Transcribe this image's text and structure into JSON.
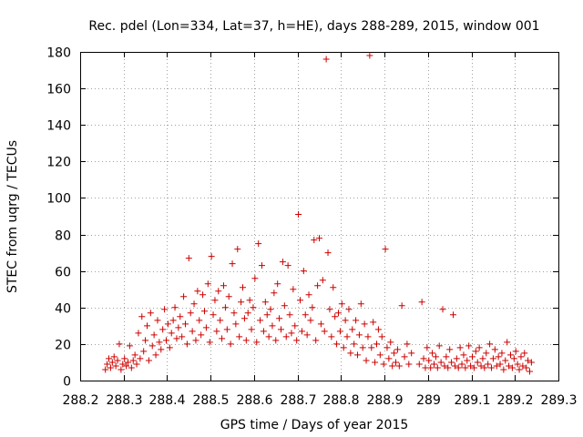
{
  "chart_data": {
    "type": "scatter",
    "title": "Rec. pdel (Lon=334, Lat=37, h=HE), days 288-289, 2015, window 001",
    "xlabel": "GPS time / Days of year 2015",
    "ylabel": "STEC from uqrg / TECUs",
    "xlim": [
      288.2,
      289.3
    ],
    "ylim": [
      0,
      180
    ],
    "xticks": [
      "288.2",
      "288.3",
      "288.4",
      "288.5",
      "288.6",
      "288.7",
      "288.8",
      "288.9",
      "289",
      "289.1",
      "289.2",
      "289.3"
    ],
    "yticks": [
      "0",
      "20",
      "40",
      "60",
      "80",
      "100",
      "120",
      "140",
      "160",
      "180"
    ],
    "grid": true,
    "marker": "+",
    "marker_color": "#cc0000",
    "points": [
      [
        288.258,
        6
      ],
      [
        288.262,
        9
      ],
      [
        288.266,
        12
      ],
      [
        288.27,
        7
      ],
      [
        288.274,
        10
      ],
      [
        288.278,
        13
      ],
      [
        288.282,
        8
      ],
      [
        288.286,
        11
      ],
      [
        288.29,
        20
      ],
      [
        288.294,
        6
      ],
      [
        288.298,
        9
      ],
      [
        288.302,
        12
      ],
      [
        288.306,
        8
      ],
      [
        288.31,
        10
      ],
      [
        288.314,
        19
      ],
      [
        288.318,
        7
      ],
      [
        288.322,
        11
      ],
      [
        288.326,
        14
      ],
      [
        288.33,
        9
      ],
      [
        288.334,
        26
      ],
      [
        288.338,
        12
      ],
      [
        288.342,
        35
      ],
      [
        288.346,
        16
      ],
      [
        288.35,
        22
      ],
      [
        288.354,
        30
      ],
      [
        288.358,
        11
      ],
      [
        288.362,
        37
      ],
      [
        288.366,
        19
      ],
      [
        288.37,
        25
      ],
      [
        288.374,
        14
      ],
      [
        288.378,
        33
      ],
      [
        288.382,
        21
      ],
      [
        288.386,
        17
      ],
      [
        288.39,
        28
      ],
      [
        288.394,
        39
      ],
      [
        288.398,
        22
      ],
      [
        288.402,
        31
      ],
      [
        288.406,
        18
      ],
      [
        288.41,
        26
      ],
      [
        288.414,
        33
      ],
      [
        288.418,
        40
      ],
      [
        288.422,
        23
      ],
      [
        288.426,
        29
      ],
      [
        288.43,
        35
      ],
      [
        288.434,
        24
      ],
      [
        288.438,
        46
      ],
      [
        288.442,
        31
      ],
      [
        288.446,
        20
      ],
      [
        288.45,
        67
      ],
      [
        288.454,
        37
      ],
      [
        288.458,
        27
      ],
      [
        288.462,
        42
      ],
      [
        288.466,
        22
      ],
      [
        288.47,
        49
      ],
      [
        288.474,
        33
      ],
      [
        288.478,
        25
      ],
      [
        288.482,
        47
      ],
      [
        288.486,
        38
      ],
      [
        288.49,
        29
      ],
      [
        288.494,
        53
      ],
      [
        288.498,
        21
      ],
      [
        288.502,
        68
      ],
      [
        288.506,
        36
      ],
      [
        288.51,
        44
      ],
      [
        288.514,
        27
      ],
      [
        288.518,
        49
      ],
      [
        288.522,
        33
      ],
      [
        288.526,
        23
      ],
      [
        288.53,
        52
      ],
      [
        288.534,
        40
      ],
      [
        288.538,
        28
      ],
      [
        288.542,
        46
      ],
      [
        288.546,
        20
      ],
      [
        288.55,
        64
      ],
      [
        288.554,
        37
      ],
      [
        288.558,
        31
      ],
      [
        288.562,
        72
      ],
      [
        288.566,
        24
      ],
      [
        288.57,
        43
      ],
      [
        288.574,
        51
      ],
      [
        288.578,
        34
      ],
      [
        288.582,
        22
      ],
      [
        288.586,
        37
      ],
      [
        288.59,
        44
      ],
      [
        288.594,
        28
      ],
      [
        288.598,
        40
      ],
      [
        288.602,
        56
      ],
      [
        288.606,
        21
      ],
      [
        288.61,
        75
      ],
      [
        288.614,
        33
      ],
      [
        288.618,
        63
      ],
      [
        288.622,
        27
      ],
      [
        288.626,
        43
      ],
      [
        288.63,
        36
      ],
      [
        288.634,
        24
      ],
      [
        288.638,
        39
      ],
      [
        288.642,
        30
      ],
      [
        288.646,
        48
      ],
      [
        288.65,
        22
      ],
      [
        288.654,
        53
      ],
      [
        288.658,
        34
      ],
      [
        288.662,
        28
      ],
      [
        288.666,
        65
      ],
      [
        288.67,
        41
      ],
      [
        288.674,
        24
      ],
      [
        288.678,
        63
      ],
      [
        288.682,
        36
      ],
      [
        288.686,
        26
      ],
      [
        288.69,
        50
      ],
      [
        288.694,
        30
      ],
      [
        288.698,
        22
      ],
      [
        288.702,
        91
      ],
      [
        288.706,
        44
      ],
      [
        288.71,
        27
      ],
      [
        288.714,
        60
      ],
      [
        288.718,
        36
      ],
      [
        288.722,
        25
      ],
      [
        288.726,
        47
      ],
      [
        288.73,
        33
      ],
      [
        288.734,
        40
      ],
      [
        288.738,
        77
      ],
      [
        288.742,
        22
      ],
      [
        288.746,
        52
      ],
      [
        288.75,
        78
      ],
      [
        288.754,
        31
      ],
      [
        288.758,
        55
      ],
      [
        288.762,
        27
      ],
      [
        288.766,
        176
      ],
      [
        288.77,
        70
      ],
      [
        288.774,
        39
      ],
      [
        288.778,
        24
      ],
      [
        288.782,
        51
      ],
      [
        288.786,
        35
      ],
      [
        288.79,
        20
      ],
      [
        288.794,
        37
      ],
      [
        288.798,
        27
      ],
      [
        288.802,
        42
      ],
      [
        288.806,
        18
      ],
      [
        288.81,
        33
      ],
      [
        288.814,
        24
      ],
      [
        288.818,
        39
      ],
      [
        288.822,
        15
      ],
      [
        288.826,
        28
      ],
      [
        288.83,
        20
      ],
      [
        288.834,
        33
      ],
      [
        288.838,
        14
      ],
      [
        288.842,
        25
      ],
      [
        288.846,
        42
      ],
      [
        288.85,
        18
      ],
      [
        288.854,
        31
      ],
      [
        288.858,
        11
      ],
      [
        288.862,
        24
      ],
      [
        288.866,
        178
      ],
      [
        288.87,
        18
      ],
      [
        288.874,
        32
      ],
      [
        288.878,
        10
      ],
      [
        288.882,
        20
      ],
      [
        288.886,
        28
      ],
      [
        288.89,
        14
      ],
      [
        288.894,
        24
      ],
      [
        288.898,
        9
      ],
      [
        288.902,
        72
      ],
      [
        288.906,
        18
      ],
      [
        288.91,
        12
      ],
      [
        288.914,
        21
      ],
      [
        288.918,
        8
      ],
      [
        288.922,
        15
      ],
      [
        288.926,
        10
      ],
      [
        288.93,
        17
      ],
      [
        288.934,
        8
      ],
      [
        288.94,
        41
      ],
      [
        288.946,
        13
      ],
      [
        288.952,
        20
      ],
      [
        288.956,
        9
      ],
      [
        288.962,
        15
      ],
      [
        288.98,
        9
      ],
      [
        288.986,
        43
      ],
      [
        288.99,
        12
      ],
      [
        288.994,
        7
      ],
      [
        288.998,
        18
      ],
      [
        289.002,
        11
      ],
      [
        289.006,
        7
      ],
      [
        289.01,
        15
      ],
      [
        289.014,
        9
      ],
      [
        289.018,
        13
      ],
      [
        289.022,
        7
      ],
      [
        289.026,
        19
      ],
      [
        289.03,
        10
      ],
      [
        289.034,
        39
      ],
      [
        289.038,
        8
      ],
      [
        289.042,
        13
      ],
      [
        289.046,
        7
      ],
      [
        289.05,
        17
      ],
      [
        289.054,
        10
      ],
      [
        289.058,
        36
      ],
      [
        289.062,
        8
      ],
      [
        289.066,
        12
      ],
      [
        289.07,
        7
      ],
      [
        289.074,
        18
      ],
      [
        289.078,
        9
      ],
      [
        289.082,
        14
      ],
      [
        289.086,
        7
      ],
      [
        289.09,
        11
      ],
      [
        289.094,
        19
      ],
      [
        289.098,
        8
      ],
      [
        289.102,
        13
      ],
      [
        289.106,
        7
      ],
      [
        289.11,
        16
      ],
      [
        289.114,
        10
      ],
      [
        289.118,
        18
      ],
      [
        289.122,
        8
      ],
      [
        289.126,
        12
      ],
      [
        289.13,
        7
      ],
      [
        289.134,
        15
      ],
      [
        289.138,
        9
      ],
      [
        289.142,
        20
      ],
      [
        289.146,
        7
      ],
      [
        289.15,
        12
      ],
      [
        289.154,
        17
      ],
      [
        289.158,
        8
      ],
      [
        289.162,
        13
      ],
      [
        289.166,
        9
      ],
      [
        289.17,
        15
      ],
      [
        289.174,
        6
      ],
      [
        289.178,
        11
      ],
      [
        289.182,
        21
      ],
      [
        289.186,
        8
      ],
      [
        289.19,
        14
      ],
      [
        289.194,
        7
      ],
      [
        289.198,
        12
      ],
      [
        289.202,
        16
      ],
      [
        289.206,
        9
      ],
      [
        289.21,
        6
      ],
      [
        289.214,
        13
      ],
      [
        289.218,
        8
      ],
      [
        289.222,
        15
      ],
      [
        289.226,
        7
      ],
      [
        289.23,
        11
      ],
      [
        289.234,
        5
      ],
      [
        289.238,
        10
      ]
    ]
  }
}
